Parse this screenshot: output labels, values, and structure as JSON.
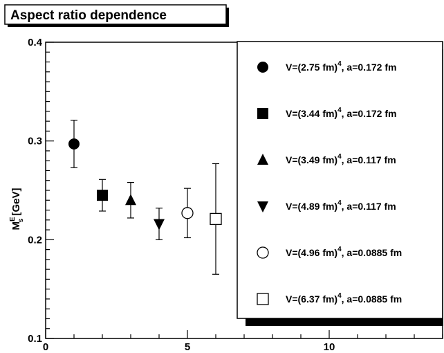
{
  "chart_data": {
    "type": "scatter",
    "title": "Aspect ratio dependence",
    "xlabel": "",
    "ylabel": "M_s^E [GeV]",
    "ylabel_parts": {
      "base": "M",
      "sup": "E",
      "sub": "s",
      "unit": " [GeV]"
    },
    "xlim": [
      0,
      14
    ],
    "ylim": [
      0.1,
      0.4
    ],
    "x_major_ticks": [
      0,
      5,
      10
    ],
    "x_tick_labels": [
      "0",
      "5",
      "10"
    ],
    "y_major_ticks": [
      0.1,
      0.2,
      0.3,
      0.4
    ],
    "y_tick_labels": [
      "0.1",
      "0.2",
      "0.3",
      "0.4"
    ],
    "grid": false,
    "legend_position": "right",
    "series": [
      {
        "name": "V=(2.75 fm)^4, a=0.172 fm",
        "legend": {
          "prefix": "V=(2.75 fm)",
          "sup": "4",
          "suffix": ", a=0.172 fm"
        },
        "marker": "filled-circle",
        "x": [
          1
        ],
        "y": [
          0.297
        ],
        "err": [
          0.024
        ]
      },
      {
        "name": "V=(3.44 fm)^4, a=0.172 fm",
        "legend": {
          "prefix": "V=(3.44 fm)",
          "sup": "4",
          "suffix": ", a=0.172 fm"
        },
        "marker": "filled-square",
        "x": [
          2
        ],
        "y": [
          0.245
        ],
        "err": [
          0.016
        ]
      },
      {
        "name": "V=(3.49 fm)^4, a=0.117 fm",
        "legend": {
          "prefix": "V=(3.49 fm)",
          "sup": "4",
          "suffix": ", a=0.117 fm"
        },
        "marker": "filled-triangle-up",
        "x": [
          3
        ],
        "y": [
          0.24
        ],
        "err": [
          0.018
        ]
      },
      {
        "name": "V=(4.89 fm)^4, a=0.117 fm",
        "legend": {
          "prefix": "V=(4.89 fm)",
          "sup": "4",
          "suffix": ", a=0.117 fm"
        },
        "marker": "filled-triangle-down",
        "x": [
          4
        ],
        "y": [
          0.216
        ],
        "err": [
          0.016
        ]
      },
      {
        "name": "V=(4.96 fm)^4, a=0.0885 fm",
        "legend": {
          "prefix": "V=(4.96 fm)",
          "sup": "4",
          "suffix": ", a=0.0885 fm"
        },
        "marker": "open-circle",
        "x": [
          5
        ],
        "y": [
          0.227
        ],
        "err": [
          0.025
        ]
      },
      {
        "name": "V=(6.37 fm)^4, a=0.0885 fm",
        "legend": {
          "prefix": "V=(6.37 fm)",
          "sup": "4",
          "suffix": ", a=0.0885 fm"
        },
        "marker": "open-square",
        "x": [
          6
        ],
        "y": [
          0.221
        ],
        "err": [
          0.056
        ]
      }
    ]
  }
}
